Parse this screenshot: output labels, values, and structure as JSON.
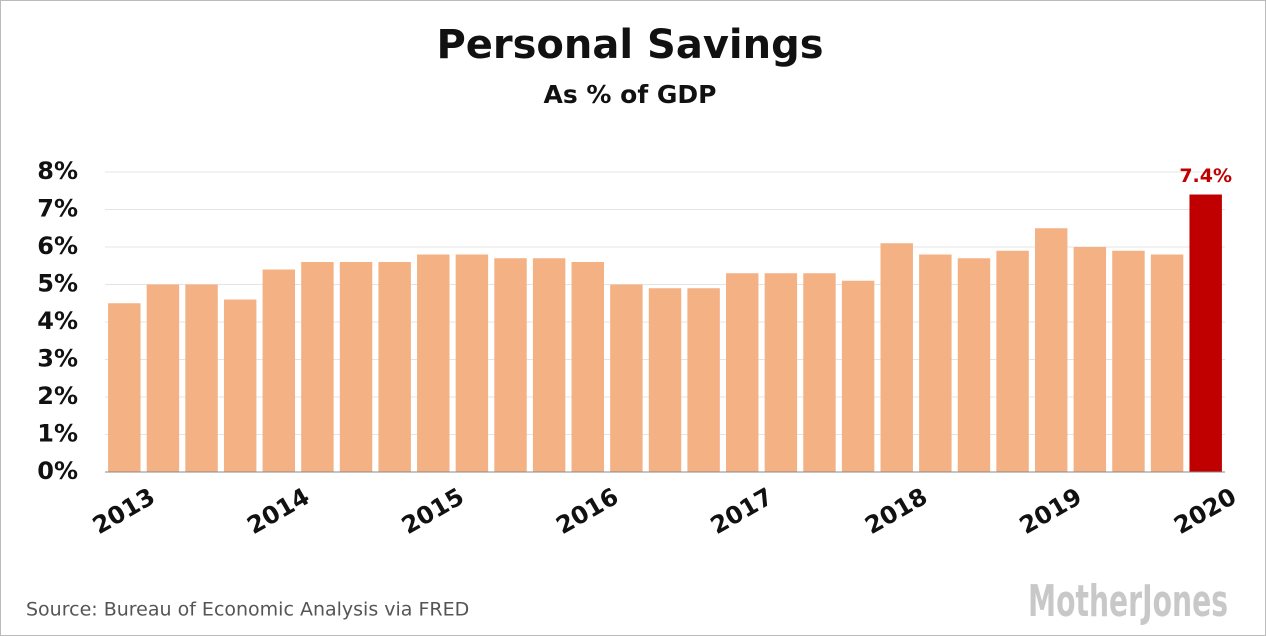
{
  "chart_data": {
    "type": "bar",
    "title": "Personal Savings",
    "subtitle": "As % of GDP",
    "categories": [
      "2013",
      null,
      null,
      null,
      "2014",
      null,
      null,
      null,
      "2015",
      null,
      null,
      null,
      "2016",
      null,
      null,
      null,
      "2017",
      null,
      null,
      null,
      "2018",
      null,
      null,
      null,
      "2019",
      null,
      null,
      null,
      "2020"
    ],
    "values": [
      4.5,
      5.0,
      5.0,
      4.6,
      5.4,
      5.6,
      5.6,
      5.6,
      5.8,
      5.8,
      5.7,
      5.7,
      5.6,
      5.0,
      4.9,
      4.9,
      5.3,
      5.3,
      5.3,
      5.1,
      6.1,
      5.8,
      5.7,
      5.9,
      6.5,
      6.0,
      5.9,
      5.8,
      7.4
    ],
    "value_labels": [
      null,
      null,
      null,
      null,
      null,
      null,
      null,
      null,
      null,
      null,
      null,
      null,
      null,
      null,
      null,
      null,
      null,
      null,
      null,
      null,
      null,
      null,
      null,
      null,
      null,
      null,
      null,
      null,
      "7.4%"
    ],
    "colors": [
      "#f4b183",
      "#f4b183",
      "#f4b183",
      "#f4b183",
      "#f4b183",
      "#f4b183",
      "#f4b183",
      "#f4b183",
      "#f4b183",
      "#f4b183",
      "#f4b183",
      "#f4b183",
      "#f4b183",
      "#f4b183",
      "#f4b183",
      "#f4b183",
      "#f4b183",
      "#f4b183",
      "#f4b183",
      "#f4b183",
      "#f4b183",
      "#f4b183",
      "#f4b183",
      "#f4b183",
      "#f4b183",
      "#f4b183",
      "#f4b183",
      "#f4b183",
      "#c00000"
    ],
    "ylim": [
      0,
      8
    ],
    "yticks": [
      {
        "value": 0,
        "label": "0%"
      },
      {
        "value": 1,
        "label": "1%"
      },
      {
        "value": 2,
        "label": "2%"
      },
      {
        "value": 3,
        "label": "3%"
      },
      {
        "value": 4,
        "label": "4%"
      },
      {
        "value": 5,
        "label": "5%"
      },
      {
        "value": 6,
        "label": "6%"
      },
      {
        "value": 7,
        "label": "7%"
      },
      {
        "value": 8,
        "label": "8%"
      }
    ],
    "grid": true,
    "source": "Source: Bureau of Economic Analysis via FRED",
    "logo": "MotherJones"
  }
}
